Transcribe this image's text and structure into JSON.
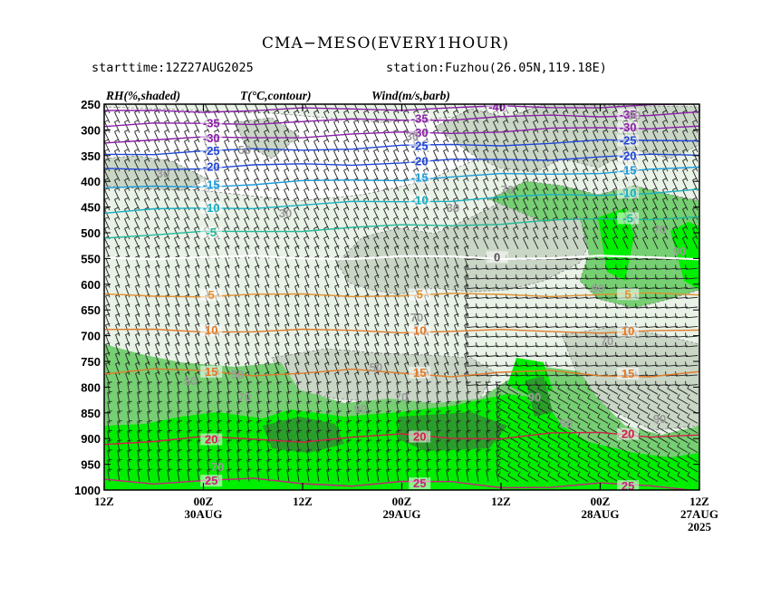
{
  "header": {
    "title": "CMA−MESO(EVERY1HOUR)",
    "starttime": "starttime:12Z27AUG2025",
    "station": "station:Fuzhou(26.05N,119.18E)"
  },
  "legend_labels": {
    "rh": "RH(%,shaded)",
    "temp": "T(°C,contour)",
    "wind": "Wind(m/s,barb)"
  },
  "colors": {
    "rh_lt30": "#ffffff",
    "rh_30_50": "#e8f2e6",
    "rh_50_70": "#c9d6c6",
    "rh_70_90": "#76cf72",
    "rh_90_95": "#00ee00",
    "rh_gt95": "#2a9e2a",
    "frame": "#000000"
  },
  "chart_data": {
    "type": "heatmap",
    "title": "CMA−MESO(EVERY1HOUR)",
    "y_axis": {
      "label": "",
      "unit": "hPa",
      "ticks": [
        250,
        300,
        350,
        400,
        450,
        500,
        550,
        600,
        650,
        700,
        750,
        800,
        850,
        900,
        950,
        1000
      ],
      "range": [
        1000,
        250
      ]
    },
    "x_axis": {
      "direction": "time decreasing to the right",
      "ticks": [
        {
          "label": "12Z",
          "date": ""
        },
        {
          "label": "00Z",
          "date": "30AUG"
        },
        {
          "label": "12Z",
          "date": ""
        },
        {
          "label": "00Z",
          "date": "29AUG"
        },
        {
          "label": "12Z",
          "date": ""
        },
        {
          "label": "00Z",
          "date": "28AUG"
        },
        {
          "label": "12Z",
          "date": "27AUG",
          "year": "2025"
        }
      ]
    },
    "temperature_contours": [
      {
        "value": -40,
        "color": "#8a1fa8",
        "p_left": 265,
        "p_right": 252,
        "labels": [
          "-40"
        ]
      },
      {
        "value": -35,
        "color": "#8a1fa8",
        "p_left": 292,
        "p_right": 268,
        "labels": [
          "-35",
          "-35",
          "-35"
        ]
      },
      {
        "value": -30,
        "color": "#8a1fa8",
        "p_left": 322,
        "p_right": 292,
        "labels": [
          "-30",
          "-30",
          "-30"
        ]
      },
      {
        "value": -25,
        "color": "#2046d6",
        "p_left": 347,
        "p_right": 318,
        "labels": [
          "-25",
          "-25",
          "-25"
        ]
      },
      {
        "value": -20,
        "color": "#2046d6",
        "p_left": 378,
        "p_right": 348,
        "labels": [
          "-20",
          "-20",
          "-20"
        ]
      },
      {
        "value": -15,
        "color": "#1a9ad8",
        "p_left": 415,
        "p_right": 375,
        "labels": [
          "-15",
          "-15",
          "-15"
        ]
      },
      {
        "value": -10,
        "color": "#18b0c0",
        "p_left": 460,
        "p_right": 418,
        "labels": [
          "-10",
          "-10",
          "-10"
        ]
      },
      {
        "value": -5,
        "color": "#20b898",
        "p_left": 507,
        "p_right": 468,
        "labels": [
          "-5",
          "-5"
        ]
      },
      {
        "value": 0,
        "color": "#ffffff",
        "p_left": 548,
        "p_right": 548,
        "labels": [
          "0"
        ]
      },
      {
        "value": 5,
        "color": "#e09030",
        "p_left": 622,
        "p_right": 620,
        "labels": [
          "5",
          "5",
          "5"
        ]
      },
      {
        "value": 10,
        "color": "#e07a28",
        "p_left": 690,
        "p_right": 692,
        "labels": [
          "10",
          "10",
          "10"
        ]
      },
      {
        "value": 15,
        "color": "#e07a28",
        "p_left": 770,
        "p_right": 775,
        "labels": [
          "15",
          "15",
          "15"
        ]
      },
      {
        "value": 20,
        "color": "#d0204a",
        "p_left": 905,
        "p_right": 890,
        "labels": [
          "20",
          "20",
          "20"
        ]
      },
      {
        "value": 25,
        "color": "#c8207a",
        "p_left": 980,
        "p_right": 995,
        "labels": [
          "25",
          "25",
          "25"
        ]
      }
    ],
    "rh_labels": [
      "30",
      "30",
      "30",
      "30",
      "50",
      "50",
      "50",
      "50",
      "70",
      "70",
      "70",
      "70",
      "70",
      "70",
      "70",
      "90",
      "90",
      "90",
      "90",
      "90",
      "90",
      "90"
    ],
    "rh_levels": [
      30,
      50,
      70,
      90,
      95
    ]
  }
}
